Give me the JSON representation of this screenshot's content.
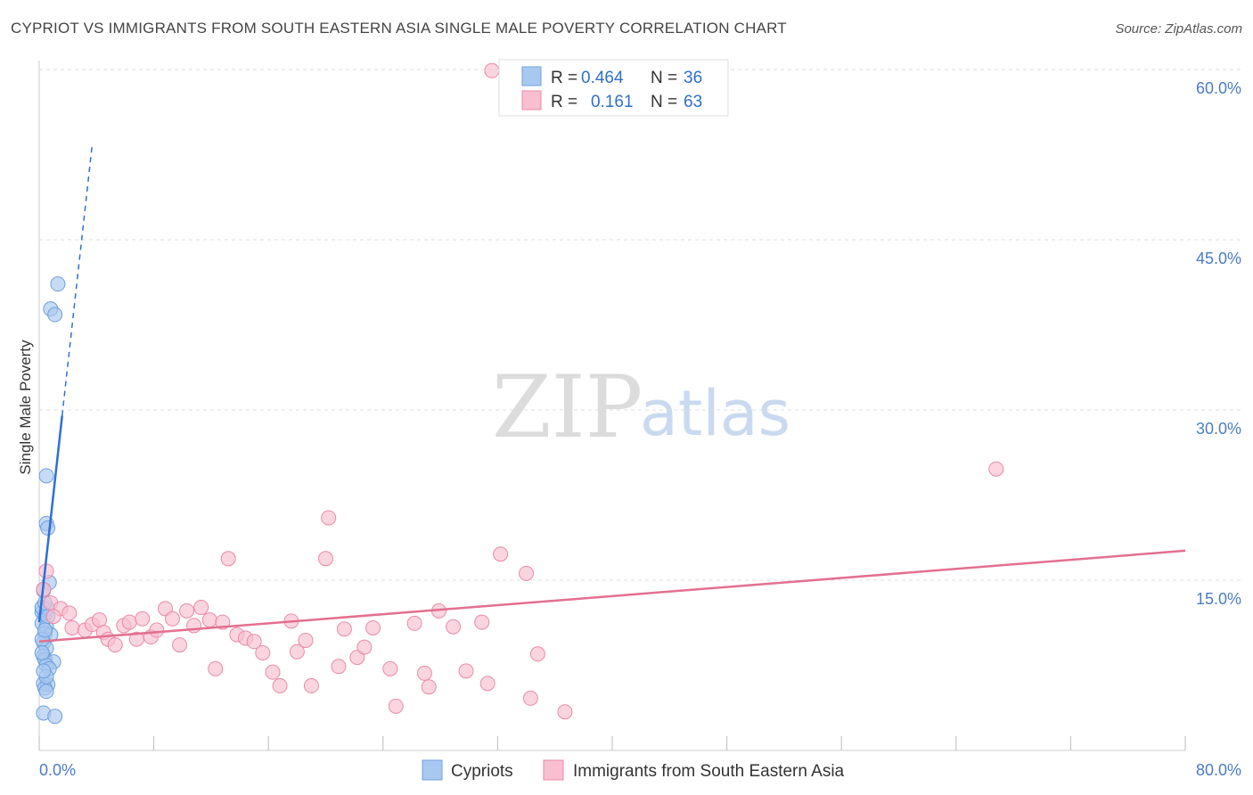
{
  "title": "CYPRIOT VS IMMIGRANTS FROM SOUTH EASTERN ASIA SINGLE MALE POVERTY CORRELATION CHART",
  "source": "Source: ZipAtlas.com",
  "watermark": {
    "zip": "ZIP",
    "atlas": "atlas"
  },
  "legend_box": {
    "rows": [
      {
        "r_label": "R =",
        "r_value": "0.464",
        "n_label": "N =",
        "n_value": "36",
        "color": "#a9c8f0"
      },
      {
        "r_label": "R =",
        "r_value": "0.161",
        "n_label": "N =",
        "n_value": "63",
        "color": "#f7bfd0"
      }
    ]
  },
  "bottom_legend": [
    {
      "label": "Cypriots",
      "color": "#a9c8f0"
    },
    {
      "label": "Immigrants from South Eastern Asia",
      "color": "#f7bfd0"
    }
  ],
  "chart_data": {
    "type": "scatter",
    "title": "CYPRIOT VS IMMIGRANTS FROM SOUTH EASTERN ASIA SINGLE MALE POVERTY CORRELATION CHART",
    "xlabel": "",
    "ylabel": "Single Male Poverty",
    "xlim": [
      0,
      80
    ],
    "ylim": [
      0,
      60
    ],
    "x_tick_labels": {
      "left": "0.0%",
      "right": "80.0%"
    },
    "y_ticks": [
      15,
      30,
      45,
      60
    ],
    "y_tick_labels": [
      "15.0%",
      "30.0%",
      "45.0%",
      "60.0%"
    ],
    "series": [
      {
        "name": "Cypriots",
        "color": "#a9c8f0",
        "stroke": "#6f9fdc",
        "trend_color": "#2e6fd6",
        "trend": {
          "x0": 0,
          "y0": 11.3,
          "x1": 1.6,
          "y1": 29.5,
          "dash_to_x": 3.7
        },
        "points": [
          {
            "x": 1.3,
            "y": 41.1
          },
          {
            "x": 0.8,
            "y": 38.9
          },
          {
            "x": 1.1,
            "y": 38.4
          },
          {
            "x": 0.5,
            "y": 24.2
          },
          {
            "x": 0.5,
            "y": 20.0
          },
          {
            "x": 0.6,
            "y": 19.6
          },
          {
            "x": 0.7,
            "y": 14.8
          },
          {
            "x": 0.3,
            "y": 14.1
          },
          {
            "x": 0.2,
            "y": 12.2
          },
          {
            "x": 0.4,
            "y": 12.0
          },
          {
            "x": 0.2,
            "y": 11.2
          },
          {
            "x": 0.5,
            "y": 10.9
          },
          {
            "x": 0.4,
            "y": 10.3
          },
          {
            "x": 0.8,
            "y": 10.2
          },
          {
            "x": 0.3,
            "y": 9.5
          },
          {
            "x": 0.5,
            "y": 9.0
          },
          {
            "x": 0.3,
            "y": 8.3
          },
          {
            "x": 0.4,
            "y": 8.0
          },
          {
            "x": 1.0,
            "y": 7.8
          },
          {
            "x": 0.5,
            "y": 7.5
          },
          {
            "x": 0.7,
            "y": 7.2
          },
          {
            "x": 0.3,
            "y": 5.9
          },
          {
            "x": 0.6,
            "y": 5.8
          },
          {
            "x": 0.4,
            "y": 5.5
          },
          {
            "x": 0.5,
            "y": 5.2
          },
          {
            "x": 0.3,
            "y": 3.3
          },
          {
            "x": 1.1,
            "y": 3.0
          },
          {
            "x": 0.2,
            "y": 12.6
          },
          {
            "x": 0.6,
            "y": 12.5
          },
          {
            "x": 0.4,
            "y": 13.0
          },
          {
            "x": 0.2,
            "y": 9.8
          },
          {
            "x": 0.5,
            "y": 6.5
          },
          {
            "x": 0.3,
            "y": 7.0
          },
          {
            "x": 0.6,
            "y": 11.8
          },
          {
            "x": 0.2,
            "y": 8.6
          },
          {
            "x": 0.4,
            "y": 10.6
          }
        ]
      },
      {
        "name": "Immigrants from South Eastern Asia",
        "color": "#f7bfd0",
        "stroke": "#ea8aa8",
        "trend_color": "#e2708f",
        "trend": {
          "x0": 0,
          "y0": 9.6,
          "x1": 80,
          "y1": 17.6
        },
        "points": [
          {
            "x": 31.6,
            "y": 59.9
          },
          {
            "x": 66.8,
            "y": 24.8
          },
          {
            "x": 20.2,
            "y": 20.5
          },
          {
            "x": 32.2,
            "y": 17.3
          },
          {
            "x": 13.2,
            "y": 16.9
          },
          {
            "x": 20.0,
            "y": 16.9
          },
          {
            "x": 34.0,
            "y": 15.6
          },
          {
            "x": 0.5,
            "y": 15.8
          },
          {
            "x": 0.8,
            "y": 13.0
          },
          {
            "x": 1.5,
            "y": 12.5
          },
          {
            "x": 2.1,
            "y": 12.1
          },
          {
            "x": 1.0,
            "y": 11.8
          },
          {
            "x": 2.3,
            "y": 10.8
          },
          {
            "x": 3.2,
            "y": 10.6
          },
          {
            "x": 3.7,
            "y": 11.1
          },
          {
            "x": 4.2,
            "y": 11.5
          },
          {
            "x": 4.5,
            "y": 10.4
          },
          {
            "x": 4.8,
            "y": 9.8
          },
          {
            "x": 5.3,
            "y": 9.3
          },
          {
            "x": 5.9,
            "y": 11.0
          },
          {
            "x": 6.3,
            "y": 11.3
          },
          {
            "x": 6.8,
            "y": 9.8
          },
          {
            "x": 7.2,
            "y": 11.6
          },
          {
            "x": 7.8,
            "y": 10.0
          },
          {
            "x": 8.2,
            "y": 10.6
          },
          {
            "x": 8.8,
            "y": 12.5
          },
          {
            "x": 9.3,
            "y": 11.6
          },
          {
            "x": 9.8,
            "y": 9.3
          },
          {
            "x": 10.3,
            "y": 12.3
          },
          {
            "x": 10.8,
            "y": 11.0
          },
          {
            "x": 11.3,
            "y": 12.6
          },
          {
            "x": 11.9,
            "y": 11.5
          },
          {
            "x": 12.3,
            "y": 7.2
          },
          {
            "x": 12.8,
            "y": 11.3
          },
          {
            "x": 13.8,
            "y": 10.2
          },
          {
            "x": 14.4,
            "y": 9.9
          },
          {
            "x": 15.0,
            "y": 9.6
          },
          {
            "x": 15.6,
            "y": 8.6
          },
          {
            "x": 16.3,
            "y": 6.9
          },
          {
            "x": 16.8,
            "y": 5.7
          },
          {
            "x": 17.6,
            "y": 11.4
          },
          {
            "x": 18.0,
            "y": 8.7
          },
          {
            "x": 18.6,
            "y": 9.7
          },
          {
            "x": 19.0,
            "y": 5.7
          },
          {
            "x": 20.9,
            "y": 7.4
          },
          {
            "x": 21.3,
            "y": 10.7
          },
          {
            "x": 22.2,
            "y": 8.2
          },
          {
            "x": 22.7,
            "y": 9.1
          },
          {
            "x": 23.3,
            "y": 10.8
          },
          {
            "x": 24.5,
            "y": 7.2
          },
          {
            "x": 24.9,
            "y": 3.9
          },
          {
            "x": 26.2,
            "y": 11.2
          },
          {
            "x": 26.9,
            "y": 6.8
          },
          {
            "x": 27.2,
            "y": 5.6
          },
          {
            "x": 27.9,
            "y": 12.3
          },
          {
            "x": 28.9,
            "y": 10.9
          },
          {
            "x": 29.8,
            "y": 7.0
          },
          {
            "x": 30.9,
            "y": 11.3
          },
          {
            "x": 31.3,
            "y": 5.9
          },
          {
            "x": 34.3,
            "y": 4.6
          },
          {
            "x": 34.8,
            "y": 8.5
          },
          {
            "x": 36.7,
            "y": 3.4
          },
          {
            "x": 0.3,
            "y": 14.2
          }
        ]
      }
    ]
  }
}
